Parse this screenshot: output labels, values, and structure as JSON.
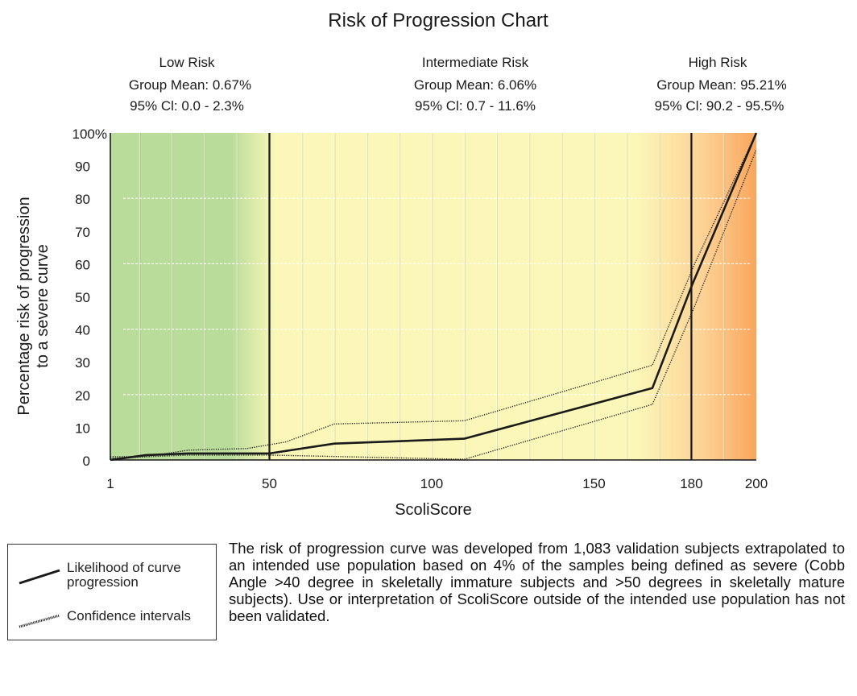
{
  "chart_data": {
    "type": "line",
    "title": "Risk of Progression Chart",
    "xlabel": "ScoliScore",
    "ylabel_lines": [
      "Percentage risk of progression",
      "to a severe curve"
    ],
    "xlim": [
      1,
      200
    ],
    "ylim": [
      0,
      100
    ],
    "x_ticks": [
      {
        "value": 1,
        "label": "1"
      },
      {
        "value": 50,
        "label": "50"
      },
      {
        "value": 100,
        "label": "100"
      },
      {
        "value": 150,
        "label": "150"
      },
      {
        "value": 180,
        "label": "180"
      },
      {
        "value": 200,
        "label": "200"
      }
    ],
    "y_ticks": [
      {
        "value": 0,
        "label": "0"
      },
      {
        "value": 10,
        "label": "10"
      },
      {
        "value": 20,
        "label": "20"
      },
      {
        "value": 30,
        "label": "30"
      },
      {
        "value": 40,
        "label": "40"
      },
      {
        "value": 50,
        "label": "50"
      },
      {
        "value": 60,
        "label": "60"
      },
      {
        "value": 70,
        "label": "70"
      },
      {
        "value": 80,
        "label": "80"
      },
      {
        "value": 90,
        "label": "90"
      },
      {
        "value": 100,
        "label": "100%"
      }
    ],
    "risk_zones": [
      {
        "name": "Low Risk",
        "mean": "Group Mean: 0.67%",
        "ci": "95% Cl: 0.0 - 2.3%",
        "from": 1,
        "to": 50,
        "color": "#b9dc9a"
      },
      {
        "name": "Intermediate Risk",
        "mean": "Group Mean: 6.06%",
        "ci": "95% Cl: 0.7 - 11.6%",
        "from": 50,
        "to": 180,
        "color": "#fbf7b8"
      },
      {
        "name": "High Risk",
        "mean": "Group Mean: 95.21%",
        "ci": "95% Cl: 90.2 - 95.5%",
        "from": 180,
        "to": 200,
        "color": "#f9a65c"
      }
    ],
    "boundaries": [
      50,
      180
    ],
    "series": [
      {
        "name": "Likelihood of curve progression",
        "style": "solid",
        "x": [
          1,
          12,
          25,
          50,
          70,
          110,
          168,
          180,
          200
        ],
        "y": [
          0,
          1.5,
          2,
          2,
          5,
          6.5,
          22,
          53,
          100
        ]
      },
      {
        "name": "Confidence intervals (upper)",
        "style": "dotted",
        "x": [
          1,
          12,
          25,
          43,
          55,
          70,
          110,
          168,
          181,
          200
        ],
        "y": [
          1,
          1,
          3,
          3.5,
          5.5,
          11,
          12,
          29,
          60,
          100
        ]
      },
      {
        "name": "Confidence intervals (lower)",
        "style": "dotted",
        "x": [
          1,
          13,
          25,
          45,
          50,
          110,
          168,
          181,
          200
        ],
        "y": [
          0.5,
          1,
          1.5,
          1.5,
          1.5,
          0.2,
          17,
          47,
          95
        ]
      }
    ]
  },
  "legend": {
    "items": [
      {
        "label_line1": "Likelihood of curve",
        "label_line2": "progression",
        "style": "solid"
      },
      {
        "label_line1": "Confidence intervals",
        "label_line2": "",
        "style": "dotted"
      }
    ]
  },
  "footnote": "The risk of progression curve was developed from 1,083 validation subjects extrapolated to an intended use population based on 4% of the samples being defined as severe (Cobb Angle >40 degree in skeletally immature subjects and >50 degrees in skeletally mature subjects). Use or interpretation of ScoliScore outside of the intended use population has not been validated.",
  "colors": {
    "low": "#b9dc9a",
    "intermediate": "#fbf7b8",
    "high": "#f9a65c",
    "line": "#1a1a1a"
  }
}
